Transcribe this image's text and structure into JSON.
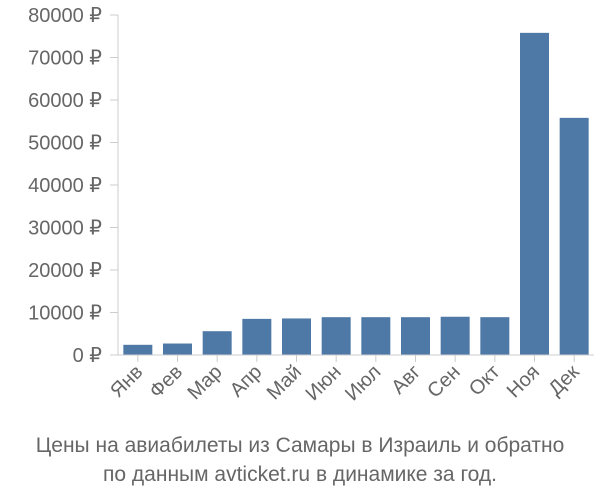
{
  "chart_data": {
    "type": "bar",
    "categories": [
      "Янв",
      "Фев",
      "Мар",
      "Апр",
      "Май",
      "Июн",
      "Июл",
      "Авг",
      "Сен",
      "Окт",
      "Ноя",
      "Дек"
    ],
    "values": [
      2400,
      2700,
      5600,
      8500,
      8600,
      8900,
      8900,
      8900,
      9000,
      8900,
      75800,
      55800
    ],
    "y_ticks": [
      "0 ₽",
      "10000 ₽",
      "20000 ₽",
      "30000 ₽",
      "40000 ₽",
      "50000 ₽",
      "60000 ₽",
      "70000 ₽",
      "80000 ₽"
    ],
    "ylim": [
      0,
      80000
    ],
    "bar_color": "#4e79a7",
    "axis_color": "#cccccc",
    "text_color": "#666666",
    "grid": false
  },
  "caption": {
    "line1": "Цены на авиабилеты из Самары в Израиль и обратно",
    "line2": "по данным avticket.ru в динамике за год."
  }
}
